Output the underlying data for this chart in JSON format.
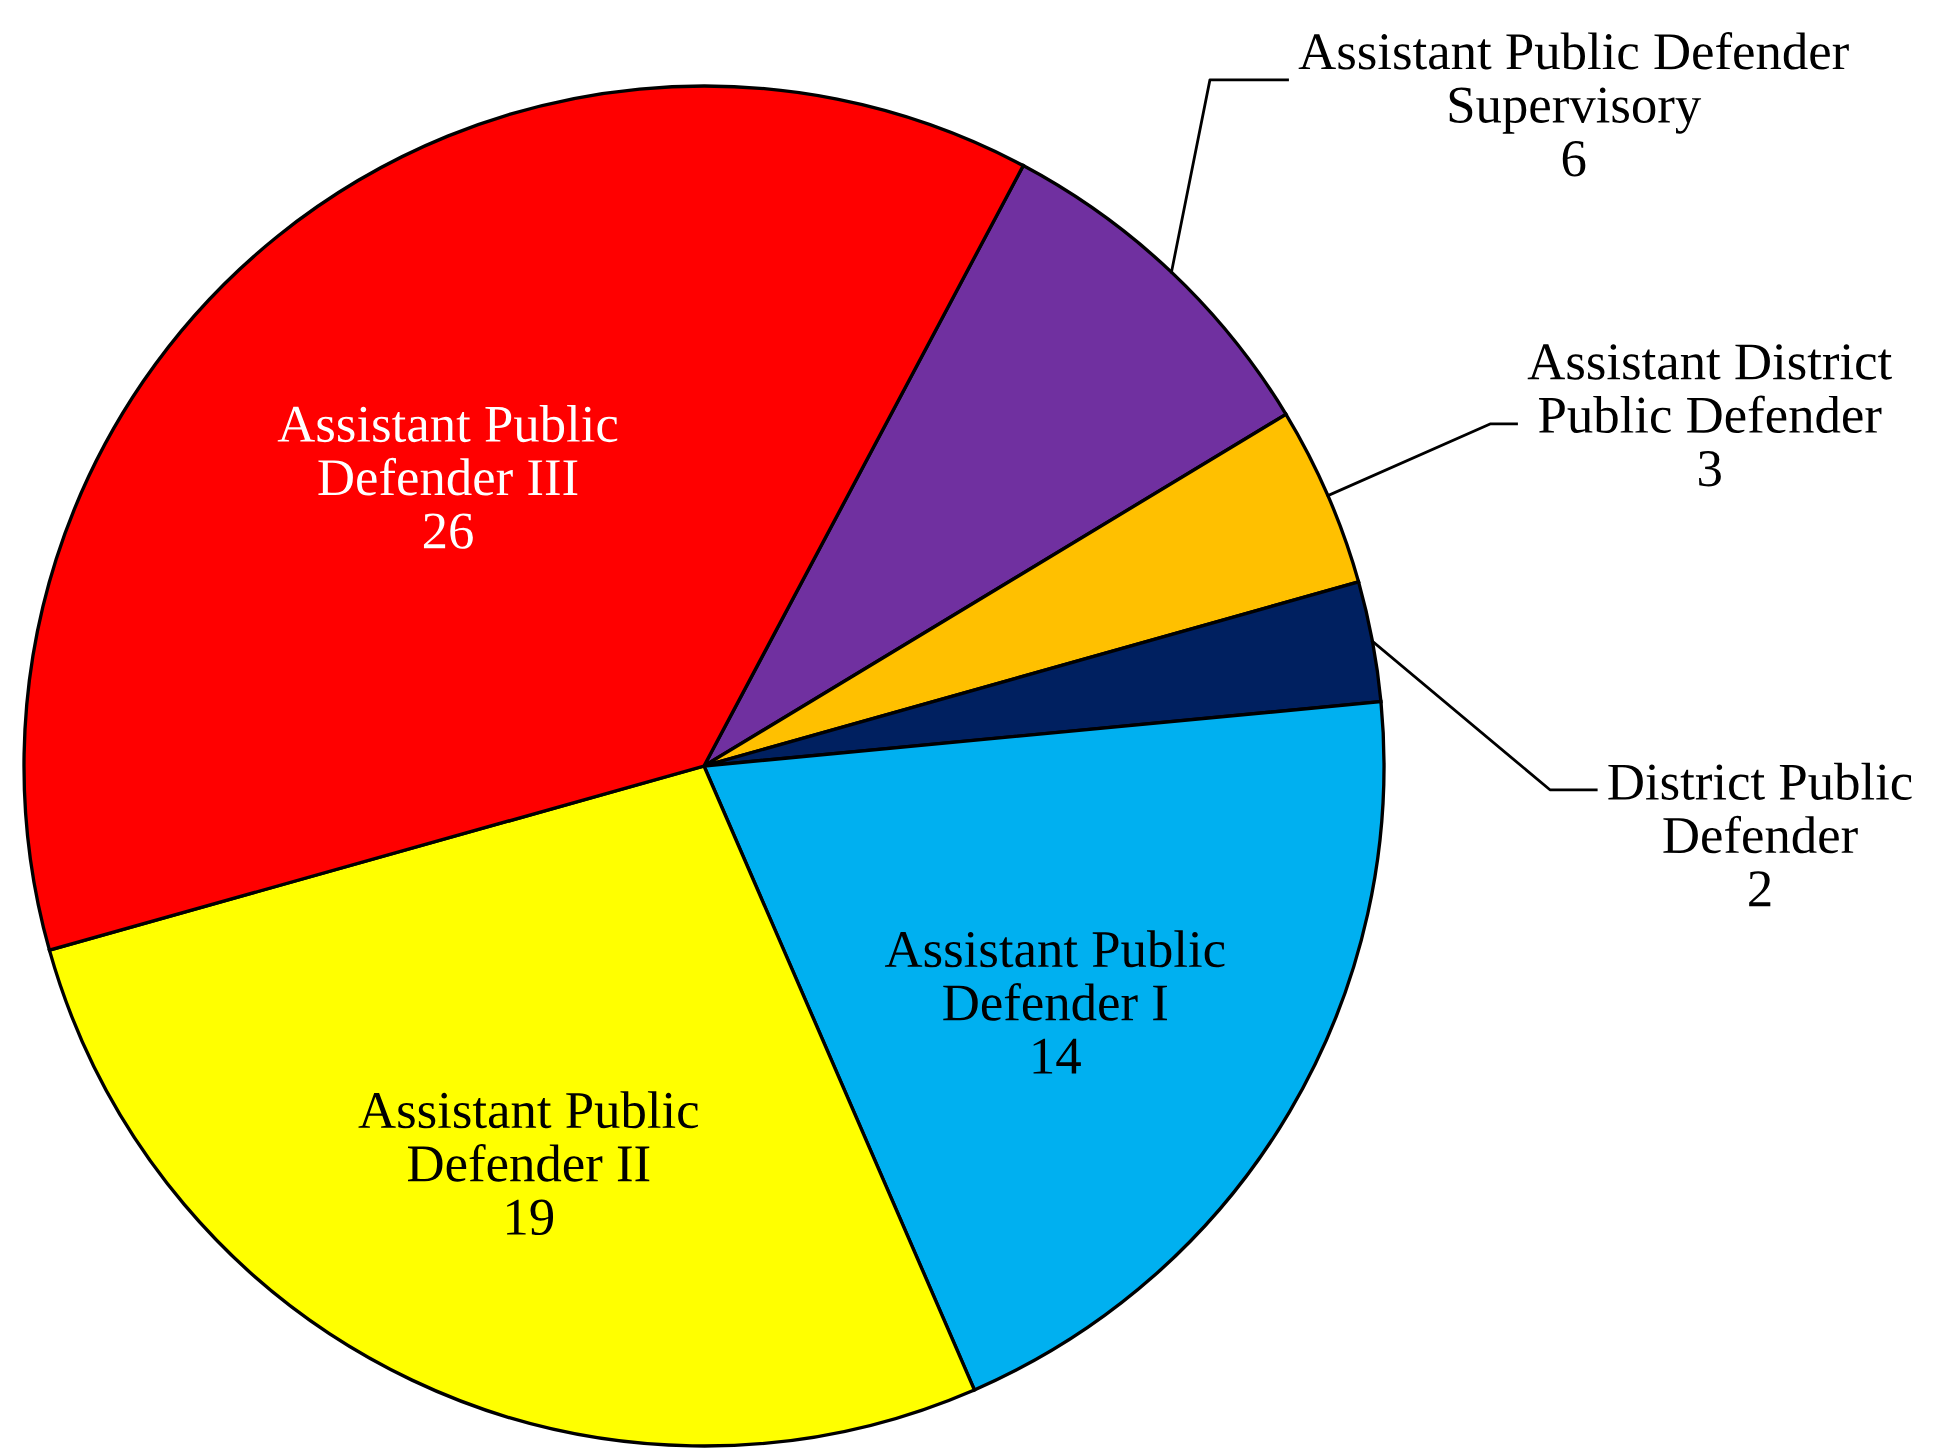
{
  "chart_data": {
    "type": "pie",
    "categories": [
      "Assistant Public Defender\nSupervisory",
      "Assistant District\nPublic Defender",
      "District Public\nDefender",
      "Assistant Public\nDefender I",
      "Assistant Public\nDefender II",
      "Assistant Public\nDefender III"
    ],
    "values": [
      6,
      3,
      2,
      14,
      19,
      26
    ],
    "colors": [
      "#7030a0",
      "#ffc000",
      "#002060",
      "#00b0f0",
      "#ffff00",
      "#ff0000"
    ],
    "data_labels": true
  }
}
